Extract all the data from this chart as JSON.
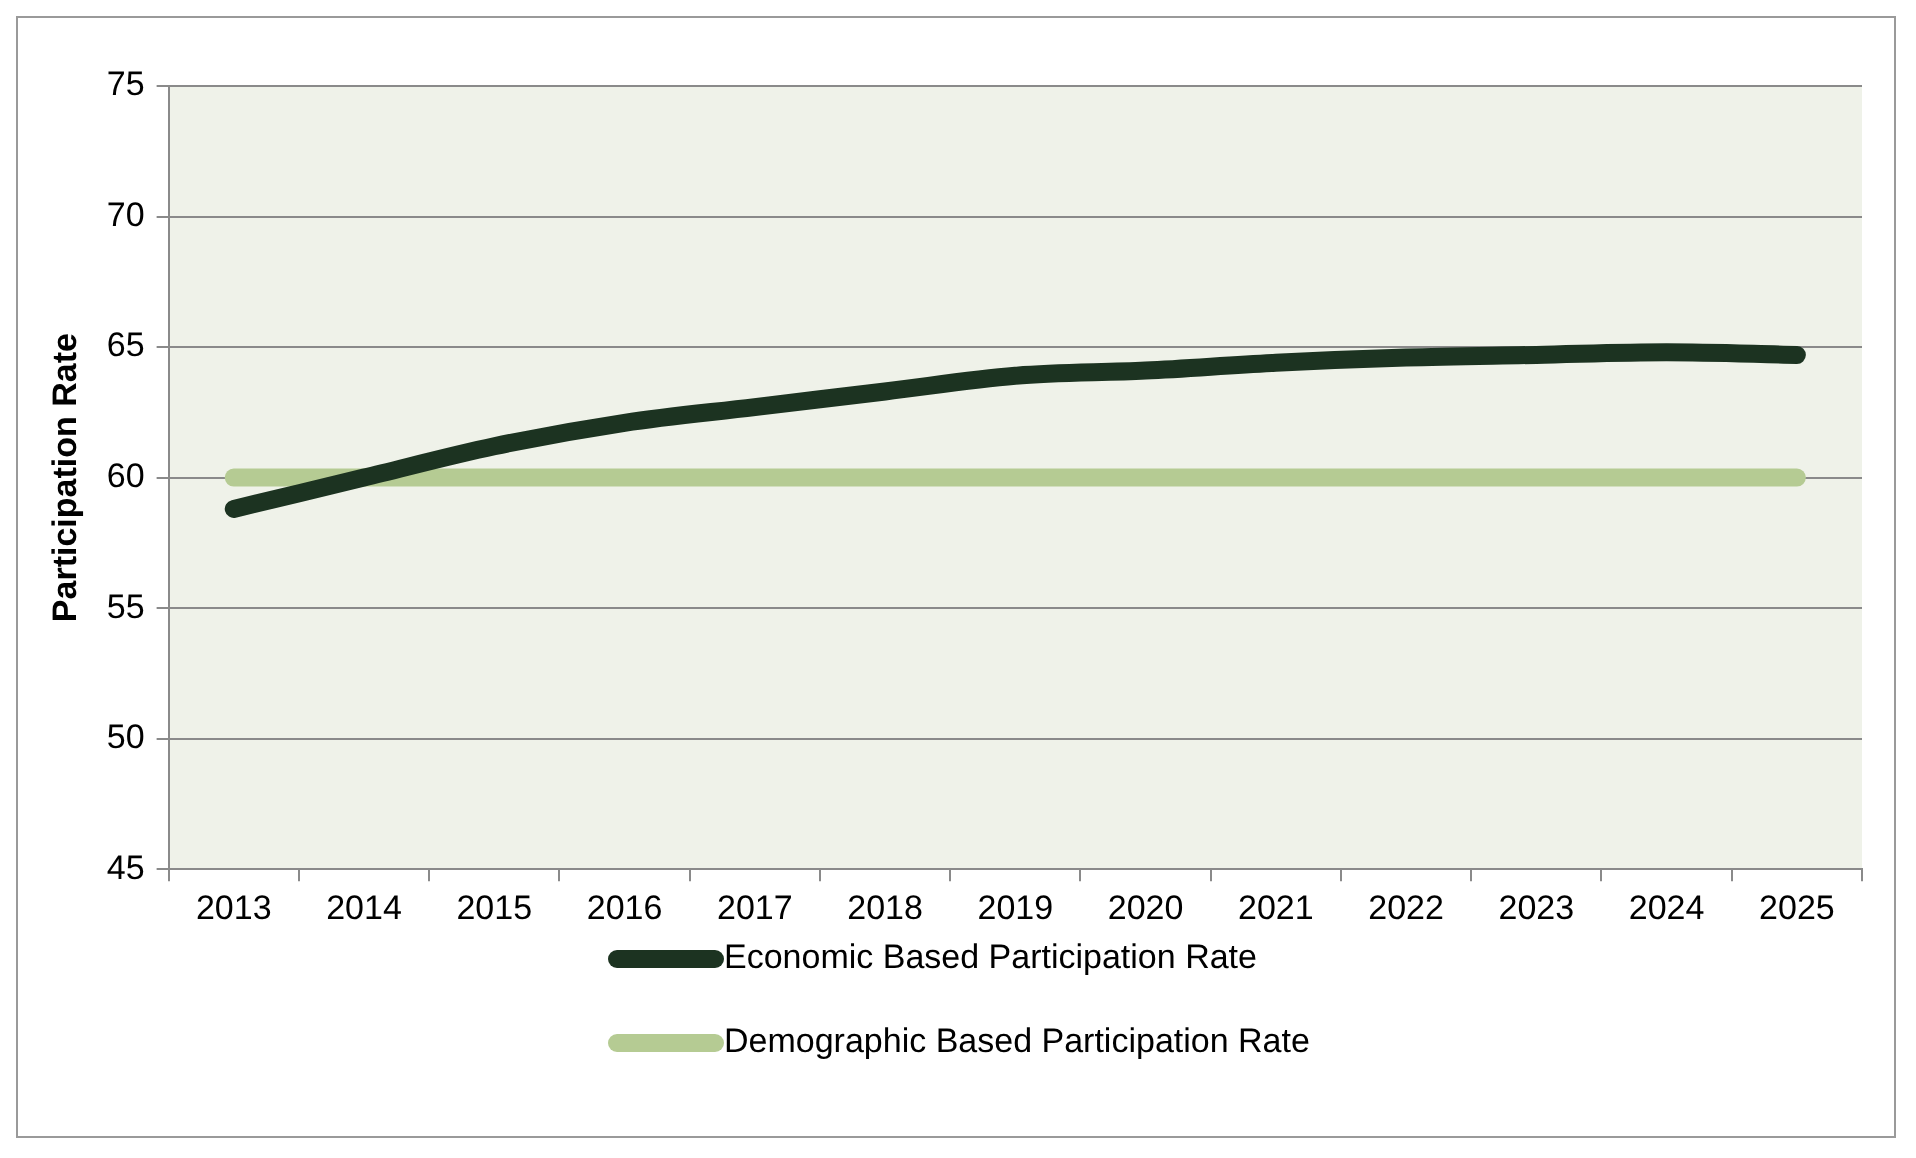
{
  "chart_data": {
    "type": "line",
    "ylabel": "Participation Rate",
    "categories": [
      "2013",
      "2014",
      "2015",
      "2016",
      "2017",
      "2018",
      "2019",
      "2020",
      "2021",
      "2022",
      "2023",
      "2024",
      "2025"
    ],
    "series": [
      {
        "name": "Economic Based Participation Rate",
        "color": "#1c3321",
        "values": [
          58.8,
          60.0,
          61.2,
          62.1,
          62.7,
          63.3,
          63.9,
          64.1,
          64.4,
          64.6,
          64.7,
          64.8,
          64.7
        ]
      },
      {
        "name": "Demographic Based Participation Rate",
        "color": "#b5cb93",
        "values": [
          60,
          60,
          60,
          60,
          60,
          60,
          60,
          60,
          60,
          60,
          60,
          60,
          60
        ]
      }
    ],
    "ylim": [
      45,
      75
    ],
    "yticks": [
      45,
      50,
      55,
      60,
      65,
      70,
      75
    ],
    "grid": "y",
    "legend": "bottom",
    "marker": "none",
    "line_style": "solid"
  }
}
